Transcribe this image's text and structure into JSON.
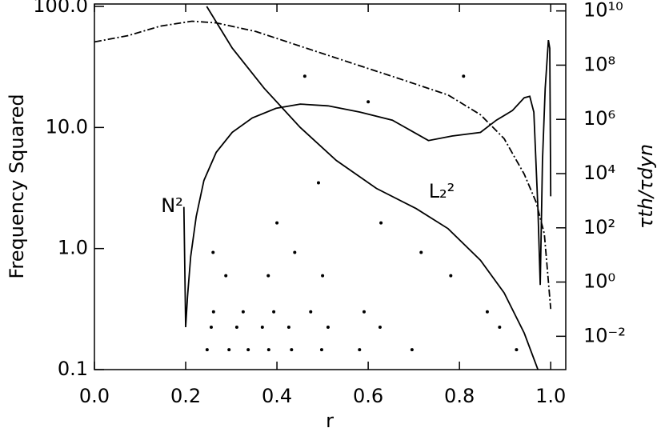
{
  "chart_data": {
    "type": "line",
    "ylabel": "Frequency Squared",
    "xlabel": "r",
    "y2label": "τth/τdyn",
    "xlim": [
      0,
      1.033
    ],
    "xticks": [
      {
        "value": 0,
        "label": "0.0"
      },
      0.2,
      0.4,
      0.6,
      0.8,
      {
        "value": 1,
        "label": "1.0"
      }
    ],
    "ylim": [
      0.1,
      104.7
    ],
    "yscale": "log",
    "yticks": [
      {
        "value": 0.1,
        "label": "0.1"
      },
      {
        "value": 1,
        "label": "1.0"
      },
      {
        "value": 10,
        "label": "10.0"
      },
      {
        "value": 100,
        "label": "100.0"
      }
    ],
    "y2lim": [
      0.00059,
      18000000000
    ],
    "y2scale": "log",
    "y2ticks": [
      {
        "value": 0.01,
        "label": "10⁻²"
      },
      {
        "value": 1,
        "label": "10⁰"
      },
      {
        "value": 100,
        "label": "10²"
      },
      {
        "value": 10000,
        "label": "10⁴"
      },
      {
        "value": 1000000,
        "label": "10⁶"
      },
      {
        "value": 100000000,
        "label": "10⁸"
      },
      {
        "value": 10000000000,
        "label": "10¹⁰"
      }
    ],
    "series": [
      {
        "name": "N²",
        "color": "#000000",
        "style": "solid",
        "x": [
          0.196,
          0.2,
          0.204,
          0.211,
          0.223,
          0.24,
          0.267,
          0.302,
          0.346,
          0.398,
          0.451,
          0.512,
          0.582,
          0.653,
          0.732,
          0.784,
          0.846,
          0.881,
          0.916,
          0.942,
          0.954,
          0.963,
          0.972,
          0.977,
          0.982,
          0.988,
          0.995,
          0.998,
          1.0
        ],
        "values": [
          2.21,
          0.224,
          0.4,
          0.86,
          1.84,
          3.65,
          6.23,
          9.12,
          12.0,
          14.4,
          15.6,
          15.1,
          13.4,
          11.5,
          7.8,
          8.5,
          9.1,
          11.5,
          13.8,
          17.6,
          18.1,
          13.4,
          2.14,
          0.5,
          5.35,
          21.1,
          52.7,
          45,
          2.7
        ]
      },
      {
        "name": "L₂²",
        "color": "#000000",
        "style": "solid",
        "x": [
          0.246,
          0.302,
          0.372,
          0.451,
          0.53,
          0.618,
          0.705,
          0.775,
          0.846,
          0.898,
          0.942,
          0.972
        ],
        "values": [
          100,
          45.3,
          21.1,
          10.0,
          5.35,
          3.14,
          2.14,
          1.46,
          0.8,
          0.43,
          0.2,
          0.1
        ]
      },
      {
        "color": "#000000",
        "style": "dashdot",
        "axis": "y2",
        "x": [
          0,
          0.074,
          0.144,
          0.214,
          0.267,
          0.354,
          0.46,
          0.565,
          0.67,
          0.775,
          0.846,
          0.898,
          0.942,
          0.968,
          0.986,
          1.0
        ],
        "values": [
          720000000,
          1230000000,
          2750000000,
          4170000000,
          3630000000,
          1740000000,
          447000000,
          117000000,
          30900000,
          7940000,
          1480000,
          195000,
          9550,
          891,
          60,
          0.102
        ]
      }
    ],
    "points": {
      "color": "#000000",
      "x": [
        0.461,
        0.809,
        0.6,
        0.491,
        0.4,
        0.628,
        0.26,
        0.439,
        0.716,
        0.288,
        0.381,
        0.5,
        0.781,
        0.261,
        0.326,
        0.393,
        0.474,
        0.591,
        0.861,
        0.256,
        0.312,
        0.368,
        0.426,
        0.512,
        0.626,
        0.888,
        0.247,
        0.295,
        0.337,
        0.382,
        0.432,
        0.498,
        0.581,
        0.696,
        0.925
      ],
      "values": [
        26.5,
        26.5,
        16.3,
        3.49,
        1.63,
        1.63,
        0.93,
        0.93,
        0.93,
        0.596,
        0.596,
        0.596,
        0.596,
        0.3,
        0.3,
        0.3,
        0.3,
        0.3,
        0.3,
        0.224,
        0.224,
        0.224,
        0.224,
        0.224,
        0.224,
        0.224,
        0.146,
        0.146,
        0.146,
        0.146,
        0.146,
        0.146,
        0.146,
        0.146,
        0.146
      ]
    }
  }
}
